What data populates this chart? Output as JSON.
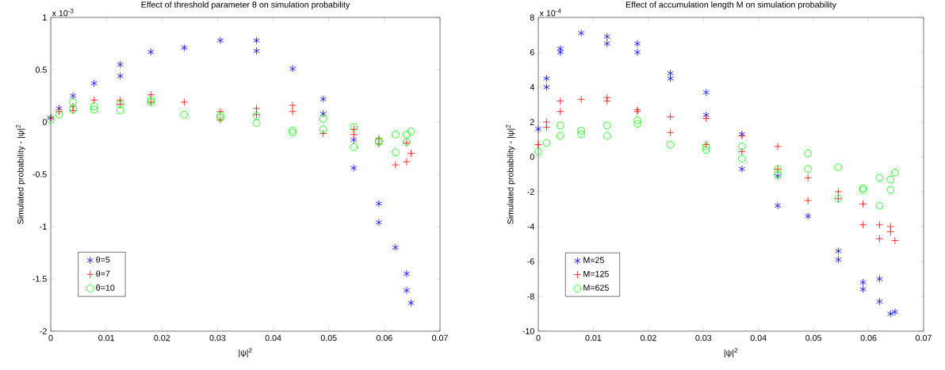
{
  "chart_data": [
    {
      "type": "scatter",
      "title": "Effect of threshold parameter θ on simulation probability",
      "xlabel": "|ψ|$^{2}$",
      "ylabel": "Simulated probability - |ψ|$^{2}$",
      "annotations": [
        "x 10$^{-3}$"
      ],
      "xlim": [
        0,
        0.07
      ],
      "xticks": [
        0,
        0.01,
        0.02,
        0.03,
        0.04,
        0.05,
        0.06,
        0.07
      ],
      "ylim": [
        -2,
        1
      ],
      "yticks": [
        -2,
        -1.5,
        -1,
        -0.5,
        0,
        0.5,
        1
      ],
      "legend": "bottom left",
      "series": [
        {
          "name": "θ=5",
          "color": "#0000ff",
          "x": [
            0,
            0.0015,
            0.004,
            0.0078,
            0.0125,
            0.0125,
            0.018,
            0.024,
            0.0305,
            0.037,
            0.037,
            0.0435,
            0.049,
            0.049,
            0.0545,
            0.0545,
            0.059,
            0.059,
            0.062,
            0.064,
            0.064,
            0.0648
          ],
          "values": [
            0.04,
            0.13,
            0.25,
            0.37,
            0.55,
            0.44,
            0.67,
            0.71,
            0.78,
            0.78,
            0.68,
            0.51,
            0.22,
            0.08,
            -0.17,
            -0.44,
            -0.78,
            -0.96,
            -1.2,
            -1.45,
            -1.61,
            -1.73
          ]
        },
        {
          "name": "θ=7",
          "color": "#ff0000",
          "marker": "cross",
          "x": [
            0,
            0.0015,
            0.004,
            0.004,
            0.0078,
            0.0125,
            0.0125,
            0.018,
            0.018,
            0.024,
            0.0305,
            0.0305,
            0.037,
            0.037,
            0.0435,
            0.0435,
            0.049,
            0.0545,
            0.0545,
            0.059,
            0.059,
            0.062,
            0.064,
            0.064,
            0.0648
          ],
          "values": [
            0.04,
            0.1,
            0.15,
            0.11,
            0.21,
            0.21,
            0.17,
            0.26,
            0.19,
            0.19,
            0.1,
            0.02,
            0.13,
            0.07,
            0.16,
            0.1,
            -0.11,
            -0.07,
            -0.12,
            -0.16,
            -0.21,
            -0.41,
            -0.2,
            -0.38,
            -0.3
          ]
        },
        {
          "name": "θ=10",
          "color": "#00ff00",
          "marker": "circle",
          "x": [
            0,
            0.0015,
            0.004,
            0.004,
            0.0078,
            0.0078,
            0.0125,
            0.0125,
            0.018,
            0.018,
            0.024,
            0.0305,
            0.0305,
            0.037,
            0.037,
            0.0435,
            0.0435,
            0.049,
            0.049,
            0.0545,
            0.0545,
            0.059,
            0.059,
            0.062,
            0.062,
            0.064,
            0.064,
            0.0648
          ],
          "values": [
            0.02,
            0.07,
            0.19,
            0.12,
            0.15,
            0.12,
            0.17,
            0.11,
            0.21,
            0.19,
            0.07,
            0.06,
            0.04,
            0.06,
            -0.01,
            -0.08,
            -0.1,
            0.03,
            -0.07,
            -0.05,
            -0.24,
            -0.18,
            -0.19,
            -0.12,
            -0.29,
            -0.12,
            -0.19,
            -0.09
          ]
        }
      ]
    },
    {
      "type": "scatter",
      "title": "Effect of accumulation length M on simulation probability",
      "xlabel": "|ψ|$^{2}$",
      "ylabel": "Simulated probability - |ψ|$^{2}$",
      "annotations": [
        "x 10$^{-4}$"
      ],
      "xlim": [
        0,
        0.07
      ],
      "xticks": [
        0,
        0.01,
        0.02,
        0.03,
        0.04,
        0.05,
        0.06,
        0.07
      ],
      "ylim": [
        -10,
        8
      ],
      "yticks": [
        -10,
        -8,
        -6,
        -4,
        -2,
        0,
        2,
        4,
        6,
        8
      ],
      "legend": "bottom left",
      "series": [
        {
          "name": "M=25",
          "color": "#0000ff",
          "x": [
            0,
            0.0015,
            0.0015,
            0.004,
            0.004,
            0.0078,
            0.0125,
            0.0125,
            0.018,
            0.018,
            0.024,
            0.024,
            0.0305,
            0.0305,
            0.037,
            0.037,
            0.0435,
            0.0435,
            0.049,
            0.0545,
            0.0545,
            0.059,
            0.059,
            0.062,
            0.062,
            0.064,
            0.0648
          ],
          "values": [
            1.6,
            4.5,
            4.0,
            6.2,
            6.0,
            7.1,
            6.9,
            6.5,
            6.5,
            6.0,
            4.8,
            4.5,
            3.7,
            2.4,
            1.3,
            -0.7,
            -1.1,
            -2.8,
            -3.4,
            -5.4,
            -5.9,
            -7.2,
            -7.6,
            -7.0,
            -8.3,
            -9.0,
            -8.9
          ]
        },
        {
          "name": "M=125",
          "color": "#ff0000",
          "marker": "cross",
          "x": [
            0,
            0.0015,
            0.0015,
            0.004,
            0.004,
            0.0078,
            0.0125,
            0.0125,
            0.018,
            0.018,
            0.024,
            0.024,
            0.0305,
            0.0305,
            0.037,
            0.037,
            0.0435,
            0.0435,
            0.049,
            0.049,
            0.0545,
            0.0545,
            0.059,
            0.059,
            0.062,
            0.062,
            0.064,
            0.064,
            0.0648
          ],
          "values": [
            0.7,
            2.0,
            1.7,
            3.2,
            2.6,
            3.3,
            3.4,
            3.2,
            2.7,
            2.6,
            2.3,
            1.4,
            2.2,
            0.7,
            1.2,
            0.3,
            0.6,
            -0.7,
            -1.2,
            -2.5,
            -2.0,
            -2.4,
            -2.7,
            -3.9,
            -3.9,
            -4.7,
            -4.0,
            -4.3,
            -4.8
          ]
        },
        {
          "name": "M=625",
          "color": "#00ff00",
          "marker": "circle",
          "x": [
            0,
            0.0015,
            0.004,
            0.004,
            0.0078,
            0.0078,
            0.0125,
            0.0125,
            0.018,
            0.018,
            0.024,
            0.0305,
            0.0305,
            0.037,
            0.037,
            0.0435,
            0.0435,
            0.049,
            0.049,
            0.0545,
            0.0545,
            0.059,
            0.059,
            0.062,
            0.062,
            0.064,
            0.064,
            0.0648
          ],
          "values": [
            0.3,
            0.8,
            1.8,
            1.2,
            1.5,
            1.3,
            1.8,
            1.2,
            2.1,
            1.9,
            0.7,
            0.6,
            0.4,
            0.6,
            -0.1,
            -0.7,
            -1.0,
            0.2,
            -0.7,
            -0.6,
            -2.4,
            -1.8,
            -1.9,
            -1.2,
            -2.8,
            -1.3,
            -1.9,
            -0.9
          ]
        }
      ]
    }
  ]
}
